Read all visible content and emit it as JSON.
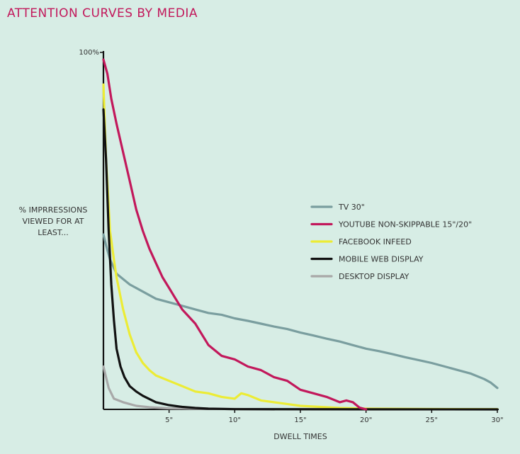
{
  "title": "ATTENTION CURVES BY MEDIA",
  "chart_data": {
    "type": "line",
    "title": "ATTENTION CURVES BY MEDIA",
    "xlabel": "DWELL TIMES",
    "ylabel_lines": [
      "% IMPRRESSIONS",
      "VIEWED FOR AT",
      "LEAST..."
    ],
    "xlim": [
      0,
      30
    ],
    "ylim": [
      0,
      100
    ],
    "y_ticks": [
      {
        "value": 100,
        "label": "100%"
      }
    ],
    "x_ticks": [
      {
        "value": 5,
        "label": "5\""
      },
      {
        "value": 10,
        "label": "10\""
      },
      {
        "value": 15,
        "label": "15\""
      },
      {
        "value": 20,
        "label": "20\""
      },
      {
        "value": 25,
        "label": "25\""
      },
      {
        "value": 30,
        "label": "30\""
      }
    ],
    "legend_position": "right",
    "series": [
      {
        "name": "TV 30\"",
        "color": "#7a9e9f",
        "x": [
          0,
          0.2,
          0.5,
          1,
          2,
          3,
          4,
          5,
          6,
          7,
          8,
          9,
          10,
          11,
          12,
          13,
          14,
          15,
          16,
          17,
          18,
          19,
          20,
          21,
          22,
          23,
          24,
          25,
          26,
          27,
          28,
          29,
          29.5,
          30
        ],
        "y": [
          49,
          46,
          42,
          38,
          35,
          33,
          31,
          30,
          29,
          28,
          27,
          26.5,
          25.5,
          24.8,
          24,
          23.2,
          22.5,
          21.5,
          20.7,
          19.8,
          19,
          18,
          17,
          16.3,
          15.5,
          14.6,
          13.8,
          13,
          12,
          11,
          10,
          8.5,
          7.5,
          6
        ]
      },
      {
        "name": "YOUTUBE NON-SKIPPABLE 15\"/20\"",
        "color": "#c2185b",
        "x": [
          0,
          0.3,
          0.6,
          1,
          1.5,
          2,
          2.5,
          3,
          3.5,
          4,
          4.5,
          5,
          5.5,
          6,
          6.5,
          7,
          7.5,
          8,
          9,
          10,
          11,
          12,
          13,
          14,
          15,
          16,
          17,
          18,
          18.5,
          19,
          19.5,
          20
        ],
        "y": [
          98,
          94,
          87,
          80,
          72,
          64,
          56,
          50,
          45,
          41,
          37,
          34,
          31,
          28,
          26,
          24,
          21,
          18,
          15,
          14,
          12,
          11,
          9,
          8,
          5.5,
          4.5,
          3.5,
          2,
          2.5,
          2,
          0.5,
          0
        ]
      },
      {
        "name": "FACEBOOK INFEED",
        "color": "#ecec35",
        "x": [
          0,
          0.2,
          0.5,
          0.8,
          1,
          1.5,
          2,
          2.5,
          3,
          3.5,
          4,
          5,
          6,
          7,
          8,
          9,
          10,
          10.5,
          11,
          12,
          13,
          14,
          15,
          16,
          17,
          18,
          19,
          20,
          25,
          30
        ],
        "y": [
          91,
          70,
          50,
          42,
          37,
          28,
          21,
          16,
          13,
          11,
          9.5,
          8,
          6.5,
          5,
          4.5,
          3.5,
          3,
          4.5,
          4,
          2.5,
          2,
          1.5,
          1,
          0.8,
          0.6,
          0.4,
          0.3,
          0.2,
          0.1,
          0.05
        ]
      },
      {
        "name": "MOBILE WEB DISPLAY",
        "color": "#111111",
        "x": [
          0,
          0.2,
          0.4,
          0.6,
          0.8,
          1,
          1.3,
          1.6,
          2,
          2.5,
          3,
          4,
          5,
          6,
          7,
          8,
          10,
          30
        ],
        "y": [
          84,
          70,
          50,
          35,
          25,
          17,
          12,
          9,
          6.5,
          5,
          3.8,
          2,
          1.2,
          0.7,
          0.4,
          0.2,
          0.05,
          0
        ]
      },
      {
        "name": "DESKTOP DISPLAY",
        "color": "#a8a8a8",
        "x": [
          0,
          0.4,
          0.8,
          1.5,
          2.5,
          3.5,
          5,
          7,
          10,
          13
        ],
        "y": [
          12,
          6,
          3,
          2,
          1,
          0.6,
          0.3,
          0.2,
          0.1,
          0
        ]
      }
    ]
  }
}
